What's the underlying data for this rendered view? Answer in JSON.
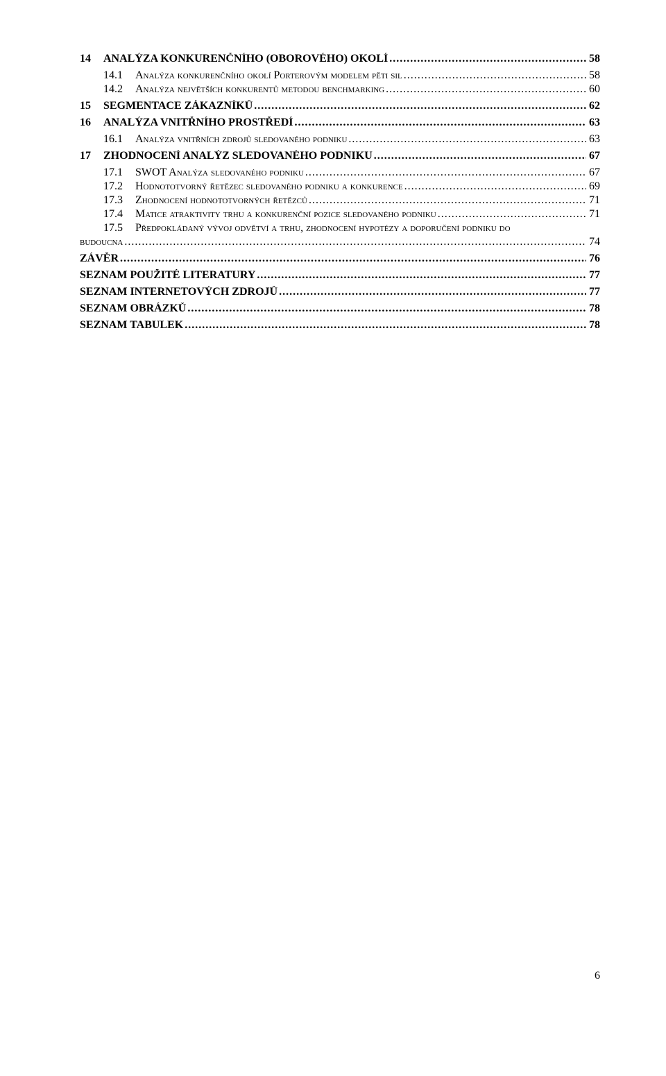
{
  "toc": [
    {
      "level": 1,
      "num": "14",
      "title": "ANALÝZA KONKURENČNÍHO (OBOROVÉHO) OKOLÍ",
      "page": "58",
      "smallcaps": false
    },
    {
      "level": 2,
      "num": "14.1",
      "title": "Analýza konkurenčního okolí Porterovým modelem pěti sil",
      "page": "58",
      "smallcaps": true
    },
    {
      "level": 2,
      "num": "14.2",
      "title": "Analýza největších konkurentů metodou benchmarking",
      "page": "60",
      "smallcaps": true
    },
    {
      "level": 1,
      "num": "15",
      "title": "SEGMENTACE ZÁKAZNÍKŮ",
      "page": "62",
      "smallcaps": false
    },
    {
      "level": 1,
      "num": "16",
      "title": "ANALÝZA VNITŘNÍHO PROSTŘEDÍ",
      "page": "63",
      "smallcaps": false
    },
    {
      "level": 2,
      "num": "16.1",
      "title": "Analýza vnitřních zdrojů sledovaného podniku",
      "page": "63",
      "smallcaps": true
    },
    {
      "level": 1,
      "num": "17",
      "title": "ZHODNOCENÍ ANALÝZ SLEDOVANÉHO PODNIKU",
      "page": "67",
      "smallcaps": false
    },
    {
      "level": 2,
      "num": "17.1",
      "title": "SWOT Analýza sledovaného podniku",
      "page": "67",
      "smallcaps": true
    },
    {
      "level": 2,
      "num": "17.2",
      "title": "Hodnototvorný řetězec sledovaného podniku a konkurence",
      "page": "69",
      "smallcaps": true
    },
    {
      "level": 2,
      "num": "17.3",
      "title": "Zhodnocení hodnototvorných řetězců",
      "page": "71",
      "smallcaps": true
    },
    {
      "level": 2,
      "num": "17.4",
      "title": "Matice atraktivity trhu a konkurenční pozice sledovaného podniku",
      "page": "71",
      "smallcaps": true
    },
    {
      "level": 2,
      "num": "17.5",
      "title": "Předpokládaný vývoj odvětví a trhu, zhodnocení hypotézy a doporučení podniku do budoucna",
      "page": "74",
      "smallcaps": true,
      "wrap": true,
      "wrapLabel": "budoucna",
      "firstLine": "Předpokládaný vývoj odvětví a trhu, zhodnocení hypotézy a doporučení podniku do"
    },
    {
      "level": 1,
      "num": "",
      "title": "ZÁVĚR",
      "page": "76",
      "smallcaps": false
    },
    {
      "level": 1,
      "num": "",
      "title": "SEZNAM POUŽITÉ LITERATURY",
      "page": "77",
      "smallcaps": false
    },
    {
      "level": 1,
      "num": "",
      "title": "SEZNAM INTERNETOVÝCH ZDROJŮ",
      "page": "77",
      "smallcaps": false
    },
    {
      "level": 1,
      "num": "",
      "title": "SEZNAM OBRÁZKŮ",
      "page": "78",
      "smallcaps": false
    },
    {
      "level": 1,
      "num": "",
      "title": "SEZNAM TABULEK",
      "page": "78",
      "smallcaps": false
    }
  ],
  "pageNumber": "6"
}
